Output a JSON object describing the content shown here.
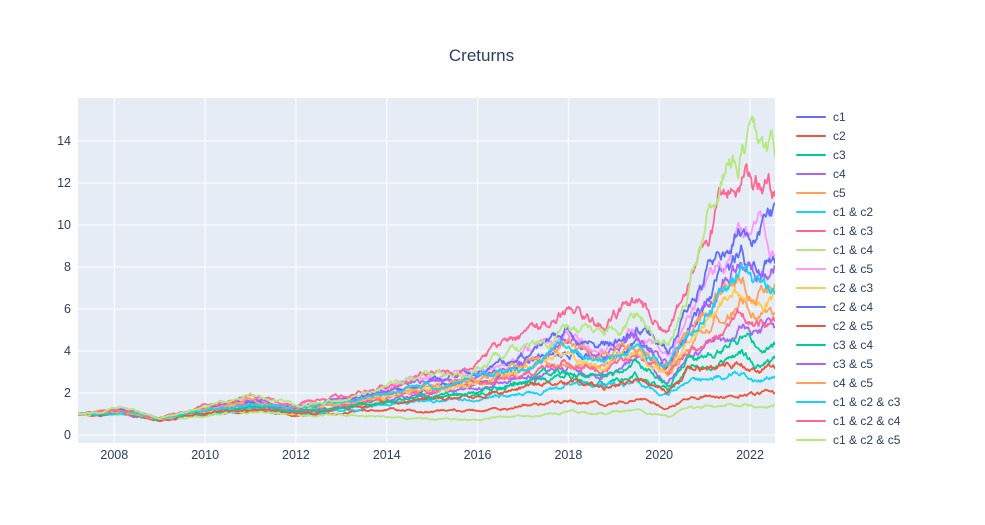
{
  "chart_data": {
    "type": "line",
    "title": "Creturns",
    "xlabel": "",
    "ylabel": "",
    "legend_position": "right",
    "grid": true,
    "colors": {
      "paper_bg": "#FFFFFF",
      "plot_bg": "#E5ECF6",
      "grid": "#FFFFFF",
      "text": "#2A3F5F"
    },
    "x_ticks": [
      "2008",
      "2010",
      "2012",
      "2014",
      "2016",
      "2018",
      "2020",
      "2022"
    ],
    "x_tick_values": [
      2008,
      2010,
      2012,
      2014,
      2016,
      2018,
      2020,
      2022
    ],
    "y_ticks": [
      "0",
      "2",
      "4",
      "6",
      "8",
      "10",
      "12",
      "14"
    ],
    "y_tick_values": [
      0,
      2,
      4,
      6,
      8,
      10,
      12,
      14
    ],
    "xlim": [
      2007.2,
      2022.55
    ],
    "ylim": [
      -0.38,
      16.05
    ],
    "x": [
      2007.2,
      2008.2,
      2009.0,
      2009.8,
      2011.0,
      2012.0,
      2013.0,
      2014.0,
      2015.0,
      2016.0,
      2017.0,
      2018.0,
      2018.8,
      2019.5,
      2020.2,
      2020.6,
      2021.3,
      2021.8,
      2022.1,
      2022.55
    ],
    "series": [
      {
        "name": "c1",
        "color": "#636EFA",
        "values": [
          1.0,
          1.12,
          0.75,
          1.15,
          1.6,
          1.25,
          1.6,
          2.0,
          2.4,
          2.6,
          3.4,
          4.2,
          3.7,
          4.5,
          3.3,
          4.9,
          7.2,
          8.5,
          7.9,
          8.0
        ]
      },
      {
        "name": "c2",
        "color": "#EF553B",
        "values": [
          1.0,
          1.05,
          0.7,
          0.95,
          1.15,
          0.95,
          1.05,
          1.2,
          1.1,
          1.15,
          1.4,
          1.6,
          1.45,
          1.7,
          1.25,
          1.8,
          1.95,
          2.1,
          1.9,
          2.0
        ]
      },
      {
        "name": "c3",
        "color": "#00CC96",
        "values": [
          1.0,
          1.05,
          0.71,
          1.02,
          1.32,
          1.06,
          1.27,
          1.53,
          1.78,
          1.92,
          2.35,
          2.72,
          2.5,
          2.95,
          2.2,
          3.1,
          3.5,
          3.9,
          3.5,
          3.6
        ]
      },
      {
        "name": "c4",
        "color": "#AB63FA",
        "values": [
          1.0,
          1.08,
          0.72,
          1.06,
          1.42,
          1.12,
          1.38,
          1.7,
          2.0,
          2.2,
          2.75,
          3.25,
          2.95,
          3.5,
          2.6,
          3.75,
          4.6,
          5.2,
          4.75,
          4.9
        ]
      },
      {
        "name": "c5",
        "color": "#FFA15A",
        "values": [
          1.0,
          1.1,
          0.74,
          1.1,
          1.5,
          1.18,
          1.48,
          1.85,
          2.2,
          2.4,
          3.05,
          3.65,
          3.3,
          3.95,
          2.9,
          4.25,
          5.6,
          6.4,
          5.8,
          6.0
        ]
      },
      {
        "name": "c1 & c2",
        "color": "#19D3F3",
        "values": [
          1.0,
          1.04,
          0.7,
          0.98,
          1.24,
          1.01,
          1.18,
          1.4,
          1.6,
          1.7,
          2.05,
          2.35,
          2.18,
          2.55,
          1.9,
          2.65,
          2.9,
          3.2,
          2.85,
          2.9
        ]
      },
      {
        "name": "c1 & c3",
        "color": "#FF6692",
        "values": [
          1.0,
          1.08,
          0.73,
          1.08,
          1.45,
          1.15,
          1.42,
          1.78,
          2.1,
          2.3,
          2.9,
          3.45,
          3.1,
          3.7,
          2.75,
          4.0,
          5.0,
          5.7,
          5.15,
          5.3
        ]
      },
      {
        "name": "c1 & c4",
        "color": "#B6E880",
        "values": [
          1.0,
          1.02,
          0.68,
          0.92,
          1.12,
          0.92,
          1.0,
          0.85,
          0.7,
          0.75,
          0.95,
          1.1,
          1.0,
          1.2,
          0.85,
          1.3,
          1.4,
          1.55,
          1.42,
          1.45
        ]
      },
      {
        "name": "c1 & c5",
        "color": "#FF97FF",
        "values": [
          1.0,
          1.18,
          0.8,
          1.22,
          1.75,
          1.32,
          1.75,
          2.2,
          2.7,
          3.0,
          3.9,
          4.6,
          4.1,
          5.0,
          3.7,
          5.4,
          8.3,
          9.6,
          9.0,
          9.3
        ]
      },
      {
        "name": "c2 & c3",
        "color": "#FECB52",
        "values": [
          1.0,
          1.1,
          0.75,
          1.12,
          1.55,
          1.2,
          1.52,
          1.9,
          2.3,
          2.5,
          3.2,
          3.8,
          3.4,
          4.1,
          3.0,
          4.4,
          5.9,
          6.7,
          6.15,
          6.4
        ]
      },
      {
        "name": "c2 & c4",
        "color": "#636EFA",
        "values": [
          1.0,
          1.15,
          0.76,
          1.2,
          1.7,
          1.3,
          1.7,
          2.1,
          2.6,
          2.9,
          3.8,
          4.9,
          4.3,
          5.3,
          3.9,
          5.8,
          9.0,
          10.4,
          9.8,
          10.0
        ]
      },
      {
        "name": "c2 & c5",
        "color": "#EF553B",
        "values": [
          1.0,
          1.05,
          0.7,
          1.0,
          1.28,
          1.04,
          1.23,
          1.47,
          1.7,
          1.82,
          2.2,
          2.55,
          2.35,
          2.75,
          2.05,
          2.9,
          3.2,
          3.55,
          3.25,
          3.3
        ]
      },
      {
        "name": "c3 & c4",
        "color": "#00CC96",
        "values": [
          1.0,
          1.06,
          0.72,
          1.05,
          1.38,
          1.1,
          1.34,
          1.64,
          1.92,
          2.1,
          2.6,
          3.05,
          2.8,
          3.3,
          2.45,
          3.5,
          4.15,
          4.7,
          4.2,
          4.3
        ]
      },
      {
        "name": "c3 & c5",
        "color": "#AB63FA",
        "values": [
          1.0,
          1.14,
          0.77,
          1.18,
          1.65,
          1.28,
          1.65,
          2.05,
          2.5,
          2.7,
          3.5,
          4.3,
          3.8,
          4.6,
          3.4,
          5.0,
          7.0,
          8.2,
          7.65,
          7.9
        ]
      },
      {
        "name": "c4 & c5",
        "color": "#FFA15A",
        "values": [
          1.0,
          1.12,
          0.76,
          1.15,
          1.6,
          1.24,
          1.58,
          1.98,
          2.4,
          2.6,
          3.35,
          4.05,
          3.65,
          4.35,
          3.25,
          4.75,
          6.4,
          7.4,
          6.85,
          7.1
        ]
      },
      {
        "name": "c1 & c2 & c3",
        "color": "#19D3F3",
        "values": [
          1.0,
          1.1,
          0.74,
          1.12,
          1.55,
          1.22,
          1.55,
          1.95,
          2.35,
          2.55,
          3.3,
          4.0,
          3.6,
          4.3,
          3.2,
          4.7,
          6.6,
          7.7,
          7.15,
          7.4
        ]
      },
      {
        "name": "c1 & c2 & c4",
        "color": "#FF6692",
        "values": [
          1.0,
          1.2,
          0.78,
          1.25,
          1.8,
          1.35,
          1.9,
          2.4,
          3.0,
          3.4,
          4.6,
          5.9,
          5.0,
          6.3,
          4.5,
          7.0,
          11.2,
          12.3,
          11.6,
          12.0
        ]
      },
      {
        "name": "c1 & c2 & c5",
        "color": "#B6E880",
        "values": [
          1.0,
          1.2,
          0.8,
          1.3,
          1.9,
          1.4,
          1.8,
          2.3,
          2.9,
          3.1,
          4.2,
          5.2,
          4.6,
          5.8,
          4.2,
          6.5,
          12.0,
          14.0,
          15.0,
          13.5
        ]
      }
    ]
  }
}
